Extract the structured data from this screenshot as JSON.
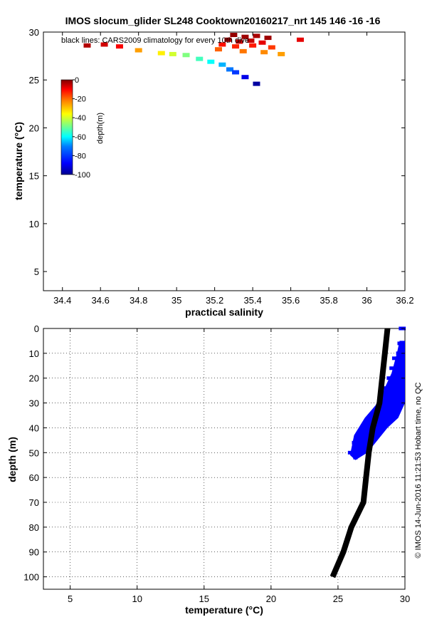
{
  "figure": {
    "title": "IMOS slocum_glider SL248 Cooktown20160217_nrt 145  146  -16  -16",
    "side_note": "© IMOS 14-Jun-2016 11:21:53 Hobart time, no QC"
  },
  "chart_data": [
    {
      "type": "scatter",
      "xlabel": "practical salinity",
      "ylabel": "temperature (°C)",
      "xlim": [
        34.3,
        36.2
      ],
      "ylim": [
        3,
        30
      ],
      "xticks": [
        "34.4",
        "34.6",
        "34.8",
        "35",
        "35.2",
        "35.4",
        "35.6",
        "35.8",
        "36",
        "36.2"
      ],
      "yticks": [
        "5",
        "10",
        "15",
        "20",
        "25",
        "30"
      ],
      "grid": false,
      "annotation": "black lines: CARS2009 climatology for every 10th dive",
      "colorbar": {
        "label": "depth(m)",
        "ticks": [
          "0",
          "-20",
          "-40",
          "-60",
          "-80",
          "-100"
        ],
        "range": [
          -100,
          0
        ],
        "colormap": [
          "#00008f",
          "#0000ff",
          "#0080ff",
          "#00ffff",
          "#80ff80",
          "#ffff00",
          "#ff8000",
          "#ff0000",
          "#800000"
        ]
      },
      "series": [
        {
          "points": [
            {
              "x": 35.3,
              "y": 29.7,
              "depth": -2
            },
            {
              "x": 35.36,
              "y": 29.5,
              "depth": -3
            },
            {
              "x": 35.42,
              "y": 29.6,
              "depth": -4
            },
            {
              "x": 35.48,
              "y": 29.4,
              "depth": -3
            },
            {
              "x": 35.27,
              "y": 29.2,
              "depth": -6
            },
            {
              "x": 35.33,
              "y": 29.0,
              "depth": -8
            },
            {
              "x": 35.39,
              "y": 29.1,
              "depth": -7
            },
            {
              "x": 35.45,
              "y": 28.9,
              "depth": -10
            },
            {
              "x": 35.24,
              "y": 28.7,
              "depth": -14
            },
            {
              "x": 35.31,
              "y": 28.5,
              "depth": -16
            },
            {
              "x": 35.4,
              "y": 28.6,
              "depth": -15
            },
            {
              "x": 35.5,
              "y": 28.4,
              "depth": -18
            },
            {
              "x": 35.22,
              "y": 28.2,
              "depth": -22
            },
            {
              "x": 35.35,
              "y": 28.0,
              "depth": -24
            },
            {
              "x": 35.46,
              "y": 27.9,
              "depth": -26
            },
            {
              "x": 35.55,
              "y": 27.7,
              "depth": -28
            },
            {
              "x": 35.65,
              "y": 29.2,
              "depth": -10
            },
            {
              "x": 34.53,
              "y": 28.6,
              "depth": -5
            },
            {
              "x": 34.62,
              "y": 28.7,
              "depth": -8
            },
            {
              "x": 34.7,
              "y": 28.5,
              "depth": -12
            },
            {
              "x": 34.8,
              "y": 28.1,
              "depth": -28
            },
            {
              "x": 34.92,
              "y": 27.8,
              "depth": -36
            },
            {
              "x": 34.98,
              "y": 27.7,
              "depth": -42
            },
            {
              "x": 35.05,
              "y": 27.6,
              "depth": -50
            },
            {
              "x": 35.12,
              "y": 27.2,
              "depth": -56
            },
            {
              "x": 35.18,
              "y": 26.9,
              "depth": -62
            },
            {
              "x": 35.24,
              "y": 26.6,
              "depth": -70
            },
            {
              "x": 35.28,
              "y": 26.1,
              "depth": -76
            },
            {
              "x": 35.31,
              "y": 25.8,
              "depth": -82
            },
            {
              "x": 35.36,
              "y": 25.3,
              "depth": -90
            },
            {
              "x": 35.42,
              "y": 24.6,
              "depth": -98
            }
          ]
        }
      ]
    },
    {
      "type": "scatter",
      "xlabel": "temperature (°C)",
      "ylabel": "depth (m)",
      "xlim": [
        3,
        30
      ],
      "ylim": [
        0,
        105
      ],
      "y_reversed": true,
      "xticks": [
        "5",
        "10",
        "15",
        "20",
        "25",
        "30"
      ],
      "yticks": [
        "0",
        "10",
        "20",
        "30",
        "40",
        "50",
        "60",
        "70",
        "80",
        "90",
        "100"
      ],
      "grid": true,
      "series": [
        {
          "color": "#0000ff",
          "points": [
            {
              "x": 29.7,
              "y": 0
            },
            {
              "x": 29.9,
              "y": 0
            },
            {
              "x": 29.6,
              "y": 6
            },
            {
              "x": 29.8,
              "y": 8
            },
            {
              "x": 29.5,
              "y": 10
            },
            {
              "x": 29.2,
              "y": 12
            },
            {
              "x": 29.7,
              "y": 14
            },
            {
              "x": 29.0,
              "y": 16
            },
            {
              "x": 29.4,
              "y": 18
            },
            {
              "x": 28.8,
              "y": 20
            },
            {
              "x": 29.6,
              "y": 22
            },
            {
              "x": 28.5,
              "y": 24
            },
            {
              "x": 29.1,
              "y": 26
            },
            {
              "x": 28.2,
              "y": 28
            },
            {
              "x": 29.3,
              "y": 30
            },
            {
              "x": 27.9,
              "y": 32
            },
            {
              "x": 28.6,
              "y": 34
            },
            {
              "x": 27.4,
              "y": 36
            },
            {
              "x": 28.0,
              "y": 38
            },
            {
              "x": 27.0,
              "y": 40
            },
            {
              "x": 27.6,
              "y": 42
            },
            {
              "x": 26.6,
              "y": 44
            },
            {
              "x": 26.2,
              "y": 46
            },
            {
              "x": 26.8,
              "y": 48
            },
            {
              "x": 25.9,
              "y": 50
            },
            {
              "x": 26.3,
              "y": 52
            },
            {
              "x": 27.3,
              "y": 50
            }
          ]
        },
        {
          "color": "#000000",
          "points": [
            {
              "x": 28.7,
              "y": 0
            },
            {
              "x": 28.5,
              "y": 10
            },
            {
              "x": 28.3,
              "y": 20
            },
            {
              "x": 28.1,
              "y": 30
            },
            {
              "x": 27.6,
              "y": 40
            },
            {
              "x": 27.3,
              "y": 50
            },
            {
              "x": 27.1,
              "y": 60
            },
            {
              "x": 26.9,
              "y": 70
            },
            {
              "x": 26.0,
              "y": 80
            },
            {
              "x": 25.4,
              "y": 90
            },
            {
              "x": 24.6,
              "y": 100
            }
          ]
        }
      ]
    }
  ]
}
